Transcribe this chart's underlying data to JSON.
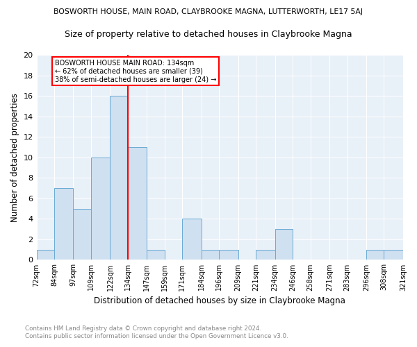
{
  "title": "BOSWORTH HOUSE, MAIN ROAD, CLAYBROOKE MAGNA, LUTTERWORTH, LE17 5AJ",
  "subtitle": "Size of property relative to detached houses in Claybrooke Magna",
  "xlabel": "Distribution of detached houses by size in Claybrooke Magna",
  "ylabel": "Number of detached properties",
  "footnote1": "Contains HM Land Registry data © Crown copyright and database right 2024.",
  "footnote2": "Contains public sector information licensed under the Open Government Licence v3.0.",
  "bins": [
    72,
    84,
    97,
    109,
    122,
    134,
    147,
    159,
    171,
    184,
    196,
    209,
    221,
    234,
    246,
    258,
    271,
    283,
    296,
    308,
    321
  ],
  "counts": [
    1,
    7,
    5,
    10,
    16,
    11,
    1,
    0,
    4,
    1,
    1,
    0,
    1,
    3,
    0,
    0,
    0,
    0,
    1,
    1
  ],
  "bar_color": "#cfe0f0",
  "bar_edge_color": "#6aaad4",
  "vline_x": 134,
  "vline_color": "red",
  "annotation_title": "BOSWORTH HOUSE MAIN ROAD: 134sqm",
  "annotation_line1": "← 62% of detached houses are smaller (39)",
  "annotation_line2": "38% of semi-detached houses are larger (24) →",
  "annotation_box_color": "white",
  "annotation_box_edge": "red",
  "ylim": [
    0,
    20
  ],
  "yticks": [
    0,
    2,
    4,
    6,
    8,
    10,
    12,
    14,
    16,
    18,
    20
  ],
  "figure_bg_color": "#ffffff",
  "plot_bg_color": "#e8f0f8",
  "tick_labels": [
    "72sqm",
    "84sqm",
    "97sqm",
    "109sqm",
    "122sqm",
    "134sqm",
    "147sqm",
    "159sqm",
    "171sqm",
    "184sqm",
    "196sqm",
    "209sqm",
    "221sqm",
    "234sqm",
    "246sqm",
    "258sqm",
    "271sqm",
    "283sqm",
    "296sqm",
    "308sqm",
    "321sqm"
  ]
}
